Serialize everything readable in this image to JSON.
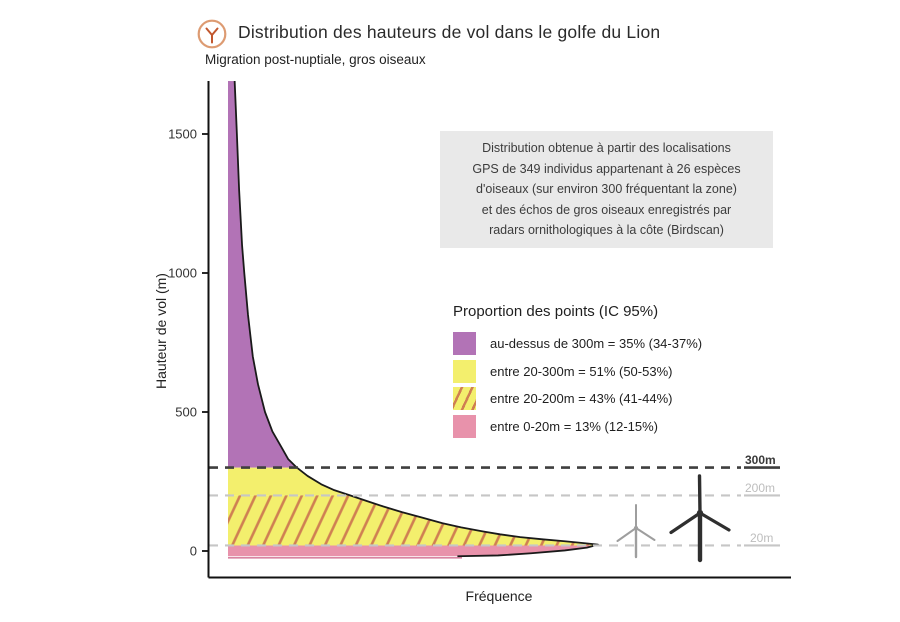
{
  "title": "Distribution des hauteurs de vol dans le golfe du Lion",
  "subtitle": "Migration post-nuptiale, gros oiseaux",
  "note_box": {
    "lines": [
      "Distribution obtenue à partir des localisations",
      "GPS de 349 individus appartenant à 26 espèces",
      "d'oiseaux (sur environ 300 fréquentant la zone)",
      "et des échos de gros oiseaux enregistrés par",
      "radars ornithologiques à la côte (Birdscan)"
    ]
  },
  "legend": {
    "title": "Proportion des points (IC 95%)",
    "items": [
      {
        "label": "au-dessus de 300m = 35% (34-37%)",
        "swatch": "purple"
      },
      {
        "label": "entre 20-300m = 51% (50-53%)",
        "swatch": "yellow"
      },
      {
        "label": "entre 20-200m = 43% (41-44%)",
        "swatch": "hatch"
      },
      {
        "label": "entre 0-20m = 13% (12-15%)",
        "swatch": "pink"
      }
    ]
  },
  "axes": {
    "x_label": "Fréquence",
    "y_label": "Hauteur de vol (m)",
    "y_ticks": [
      0,
      500,
      1000,
      1500
    ]
  },
  "colors": {
    "purple": "#b273b6",
    "yellow": "#f3ef6d",
    "pink": "#e892ab",
    "hatch_line": "#cf7f52",
    "outline": "#1a1a1a",
    "dash_dark": "#3f3f3f",
    "dash_light": "#c6c6c6",
    "note_bg": "#e9e9e9",
    "icon_ring": "#dd9b72",
    "icon_glyph": "#c2572e",
    "turbine_large": "#2f2f2f",
    "turbine_small": "#9e9e9e",
    "pink_edge": "#d884a2"
  },
  "chart_data": {
    "type": "area",
    "subtype": "vertical-density-profile",
    "title": "Distribution des hauteurs de vol dans le golfe du Lion",
    "subtitle": "Migration post-nuptiale, gros oiseaux",
    "xlabel": "Fréquence",
    "ylabel": "Hauteur de vol (m)",
    "ylim": [
      0,
      1690
    ],
    "y_ticks": [
      0,
      500,
      1000,
      1500
    ],
    "grid": "off",
    "legend_position": "center-right",
    "reference_lines": [
      {
        "height_m": 300,
        "label": "300m",
        "emphasis": "dark"
      },
      {
        "height_m": 200,
        "label": "200m",
        "emphasis": "light"
      },
      {
        "height_m": 20,
        "label": "20m",
        "emphasis": "light"
      }
    ],
    "bands": [
      {
        "name": "au-dessus de 300m",
        "from_m": 300,
        "to_m": 1690,
        "proportion_pct": 35,
        "ci95_pct": "34-37",
        "fill": "purple"
      },
      {
        "name": "entre 20-300m",
        "from_m": 20,
        "to_m": 300,
        "proportion_pct": 51,
        "ci95_pct": "50-53",
        "fill": "yellow"
      },
      {
        "name": "entre 20-200m",
        "from_m": 20,
        "to_m": 200,
        "proportion_pct": 43,
        "ci95_pct": "41-44",
        "fill": "yellow-hatched"
      },
      {
        "name": "entre 0-20m",
        "from_m": 0,
        "to_m": 20,
        "proportion_pct": 13,
        "ci95_pct": "12-15",
        "fill": "pink"
      }
    ],
    "density_profile": [
      {
        "height_m": 1690,
        "rel_freq": 0.018
      },
      {
        "height_m": 1500,
        "rel_freq": 0.024
      },
      {
        "height_m": 1300,
        "rel_freq": 0.03
      },
      {
        "height_m": 1100,
        "rel_freq": 0.038
      },
      {
        "height_m": 1000,
        "rel_freq": 0.044
      },
      {
        "height_m": 850,
        "rel_freq": 0.054
      },
      {
        "height_m": 700,
        "rel_freq": 0.067
      },
      {
        "height_m": 600,
        "rel_freq": 0.081
      },
      {
        "height_m": 500,
        "rel_freq": 0.1
      },
      {
        "height_m": 430,
        "rel_freq": 0.12
      },
      {
        "height_m": 370,
        "rel_freq": 0.146
      },
      {
        "height_m": 330,
        "rel_freq": 0.163
      },
      {
        "height_m": 300,
        "rel_freq": 0.186
      },
      {
        "height_m": 270,
        "rel_freq": 0.215
      },
      {
        "height_m": 240,
        "rel_freq": 0.252
      },
      {
        "height_m": 220,
        "rel_freq": 0.285
      },
      {
        "height_m": 200,
        "rel_freq": 0.33
      },
      {
        "height_m": 180,
        "rel_freq": 0.375
      },
      {
        "height_m": 160,
        "rel_freq": 0.42
      },
      {
        "height_m": 140,
        "rel_freq": 0.47
      },
      {
        "height_m": 120,
        "rel_freq": 0.525
      },
      {
        "height_m": 100,
        "rel_freq": 0.58
      },
      {
        "height_m": 85,
        "rel_freq": 0.63
      },
      {
        "height_m": 70,
        "rel_freq": 0.69
      },
      {
        "height_m": 60,
        "rel_freq": 0.735
      },
      {
        "height_m": 50,
        "rel_freq": 0.79
      },
      {
        "height_m": 42,
        "rel_freq": 0.85
      },
      {
        "height_m": 35,
        "rel_freq": 0.91
      },
      {
        "height_m": 28,
        "rel_freq": 0.965
      },
      {
        "height_m": 23,
        "rel_freq": 1.0
      }
    ],
    "bottom_return": [
      {
        "rel_freq": 0.97,
        "height_m": 12
      },
      {
        "rel_freq": 0.91,
        "height_m": 2
      },
      {
        "rel_freq": 0.82,
        "height_m": -8
      },
      {
        "rel_freq": 0.73,
        "height_m": -16
      },
      {
        "rel_freq": 0.62,
        "height_m": -19
      },
      {
        "rel_freq": 0.0,
        "height_m": -19
      }
    ]
  }
}
